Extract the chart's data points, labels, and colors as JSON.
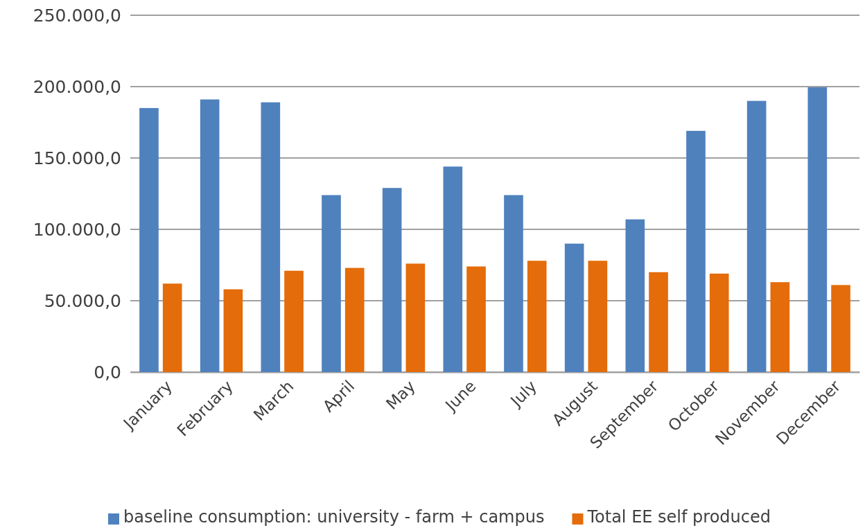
{
  "chart_data": {
    "type": "bar",
    "categories": [
      "January",
      "February",
      "March",
      "April",
      "May",
      "June",
      "July",
      "August",
      "September",
      "October",
      "November",
      "December"
    ],
    "series": [
      {
        "name": "baseline consumption: university - farm + campus",
        "color": "#4f81bd",
        "values": [
          185000,
          191000,
          189000,
          124000,
          129000,
          144000,
          124000,
          90000,
          107000,
          169000,
          190000,
          199500
        ]
      },
      {
        "name": "Total EE self produced",
        "color": "#e46c0a",
        "values": [
          62000,
          58000,
          71000,
          73000,
          76000,
          74000,
          78000,
          78000,
          70000,
          69000,
          63000,
          61000
        ]
      }
    ],
    "ylim": [
      0,
      250000
    ],
    "yticks": [
      {
        "value": 0,
        "label": "0,0"
      },
      {
        "value": 50000,
        "label": "50.000,0"
      },
      {
        "value": 100000,
        "label": "100.000,0"
      },
      {
        "value": 150000,
        "label": "150.000,0"
      },
      {
        "value": 200000,
        "label": "200.000,0"
      },
      {
        "value": 250000,
        "label": "250.000,0"
      }
    ],
    "grid": "y",
    "legend": "bottom"
  }
}
